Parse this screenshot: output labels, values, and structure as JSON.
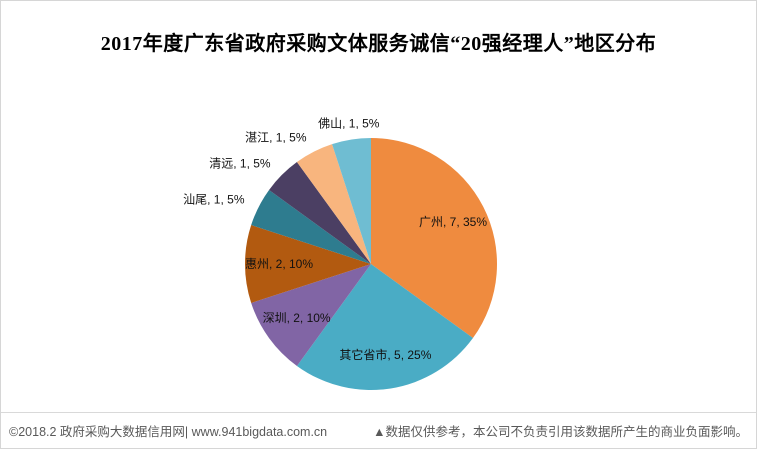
{
  "title": "2017年度广东省政府采购文体服务诚信“20强经理人”地区分布",
  "footer": {
    "left": "©2018.2 政府采购大数据信用网| www.941bigdata.com.cn",
    "right": "▲数据仅供参考，本公司不负责引用该数据所产生的商业负面影响。"
  },
  "chart_data": {
    "type": "pie",
    "title": "2017年度广东省政府采购文体服务诚信“20强经理人”地区分布",
    "legend": "none",
    "start_angle_deg": 0,
    "direction": "clockwise",
    "total": 20,
    "label_format": "{label}, {value}, {percent}%",
    "slices": [
      {
        "label": "广州",
        "value": 7,
        "percent": 35,
        "color": "#EF8B3F"
      },
      {
        "label": "其它省市",
        "value": 5,
        "percent": 25,
        "color": "#4AACC5"
      },
      {
        "label": "深圳",
        "value": 2,
        "percent": 10,
        "color": "#8165A5"
      },
      {
        "label": "惠州",
        "value": 2,
        "percent": 10,
        "color": "#B25A10"
      },
      {
        "label": "汕尾",
        "value": 1,
        "percent": 5,
        "color": "#2E7C8F"
      },
      {
        "label": "清远",
        "value": 1,
        "percent": 5,
        "color": "#4B3F63"
      },
      {
        "label": "湛江",
        "value": 1,
        "percent": 5,
        "color": "#F8B57E"
      },
      {
        "label": "佛山",
        "value": 1,
        "percent": 5,
        "color": "#6FBDD2"
      }
    ]
  }
}
